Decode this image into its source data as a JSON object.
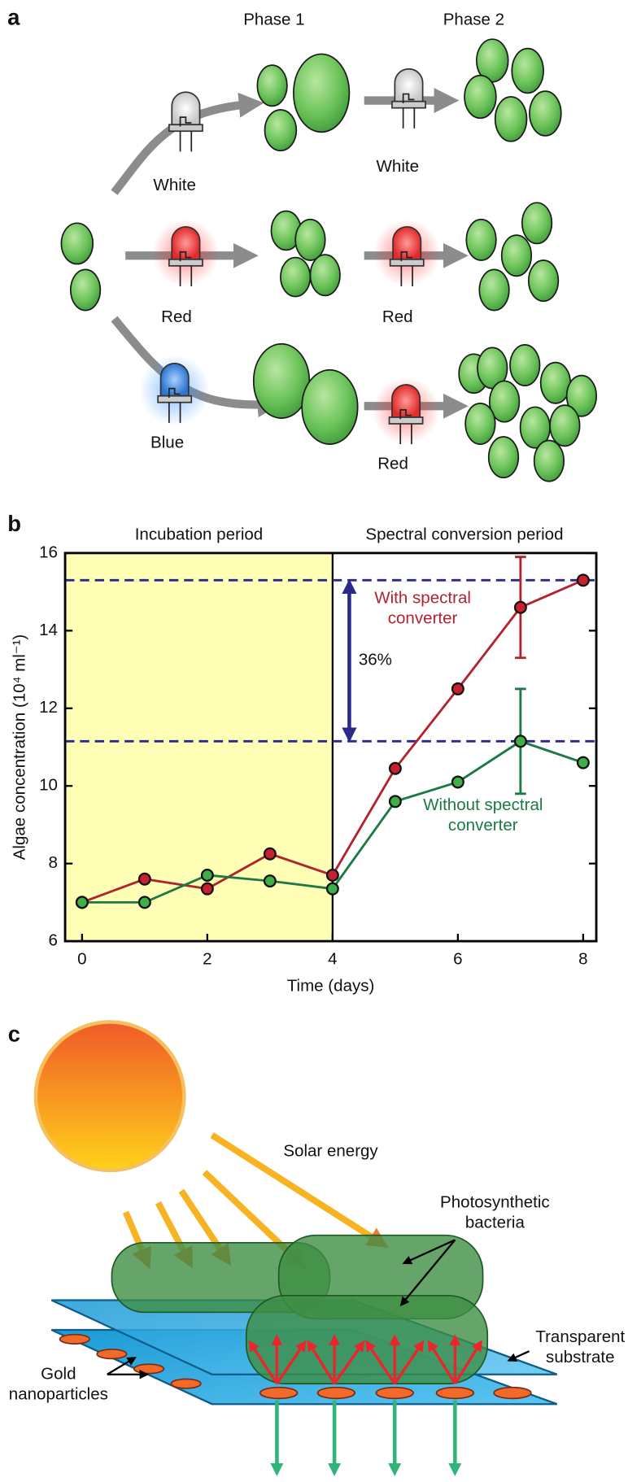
{
  "panel_a": {
    "panel_label": "a",
    "phase_labels": [
      "Phase 1",
      "Phase 2"
    ],
    "led_labels": [
      "White",
      "White",
      "Red",
      "Red",
      "Blue",
      "Red"
    ]
  },
  "chart_data": {
    "type": "line",
    "panel_label": "b",
    "regions": [
      {
        "label": "Incubation period",
        "from": -0.27,
        "to": 4,
        "color": "#ffffb5"
      },
      {
        "label": "Spectral conversion period",
        "from": 4,
        "to": 8.21,
        "color": "#ffffff"
      }
    ],
    "x": [
      0,
      1,
      2,
      3,
      4,
      5,
      6,
      7,
      8
    ],
    "series": [
      {
        "name": "With spectral converter",
        "color": "#b3232f",
        "marker_color": "#c8202f",
        "values": [
          7.0,
          7.6,
          7.35,
          8.25,
          7.7,
          10.45,
          12.5,
          14.6,
          15.3
        ],
        "errors": [
          null,
          null,
          null,
          null,
          null,
          null,
          null,
          1.3,
          null
        ]
      },
      {
        "name": "Without spectral converter",
        "color": "#1b7a44",
        "marker_color": "#3fae49",
        "values": [
          7.0,
          7.0,
          7.7,
          7.55,
          7.35,
          9.6,
          10.1,
          11.15,
          10.6
        ],
        "errors": [
          null,
          null,
          null,
          null,
          null,
          null,
          null,
          1.35,
          null
        ]
      }
    ],
    "reference_lines": [
      15.3,
      11.15
    ],
    "reference_color": "#2a2a8c",
    "annotation": "36%",
    "xlim": [
      -0.27,
      8.21
    ],
    "xticks": [
      0,
      2,
      4,
      6,
      8
    ],
    "ylim": [
      6,
      16
    ],
    "yticks": [
      6,
      8,
      10,
      12,
      14,
      16
    ],
    "xlabel": "Time (days)",
    "ylabel": "Algae concentration (10⁴ ml⁻¹)"
  },
  "panel_c": {
    "panel_label": "c",
    "labels": [
      "Solar energy",
      "Photosynthetic bacteria",
      "Transparent substrate",
      "Gold nanoparticles"
    ]
  }
}
